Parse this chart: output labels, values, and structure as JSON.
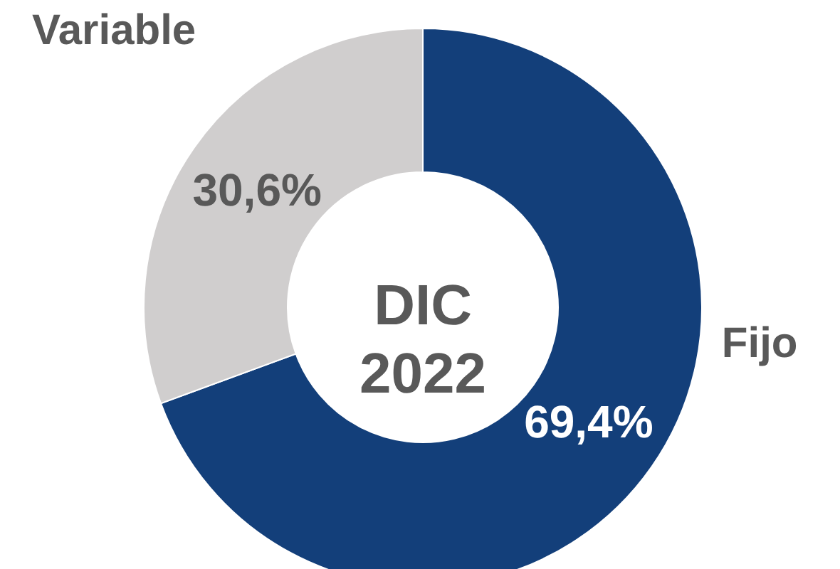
{
  "chart_data": {
    "type": "donut",
    "categories": [
      "Fijo",
      "Variable"
    ],
    "values": [
      69.4,
      30.6
    ],
    "colors": [
      "#133f7a",
      "#d0cece"
    ],
    "value_labels": [
      "69,4%",
      "30,6%"
    ],
    "annotations": [
      "DIC",
      "2022"
    ]
  }
}
